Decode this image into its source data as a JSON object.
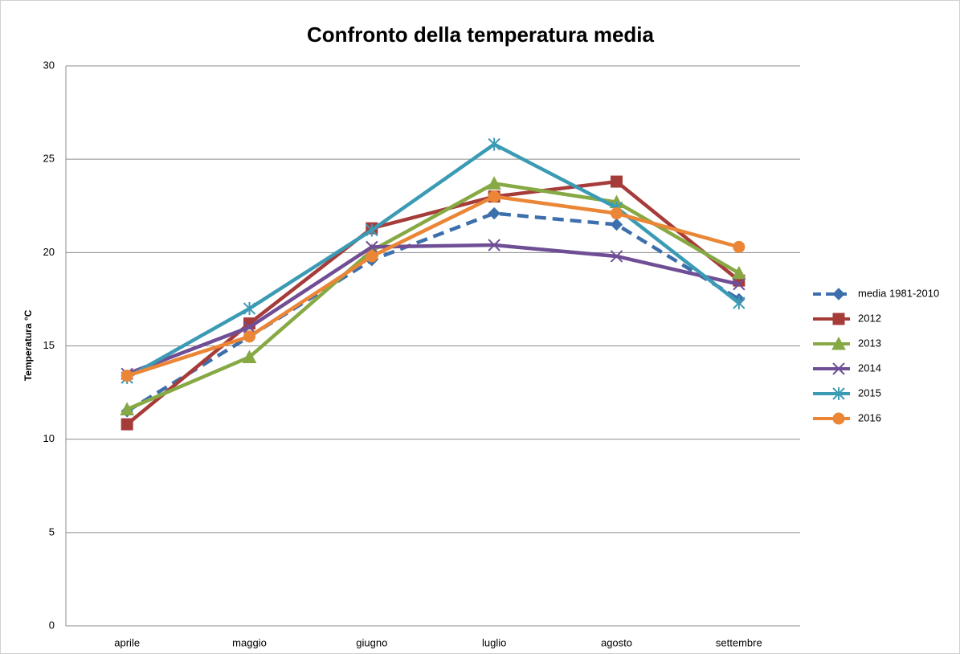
{
  "chart_data": {
    "type": "line",
    "title": "Confronto della temperatura media",
    "y_label": "Temperatura °C",
    "categories": [
      "aprile",
      "maggio",
      "giugno",
      "luglio",
      "agosto",
      "settembre"
    ],
    "series": [
      {
        "name": "media 1981-2010",
        "color": "#3d6fad",
        "marker": "diamond",
        "dashed": true,
        "values": [
          11.5,
          15.5,
          19.6,
          22.1,
          21.5,
          17.5
        ]
      },
      {
        "name": "2012",
        "color": "#a63c3a",
        "marker": "square",
        "values": [
          10.8,
          16.2,
          21.3,
          23.0,
          23.8,
          18.5
        ]
      },
      {
        "name": "2013",
        "color": "#86a944",
        "marker": "triangle",
        "values": [
          11.6,
          14.4,
          20.1,
          23.7,
          22.7,
          18.9
        ]
      },
      {
        "name": "2014",
        "color": "#6f4e96",
        "marker": "x",
        "values": [
          13.5,
          16.0,
          20.3,
          20.4,
          19.8,
          18.3
        ]
      },
      {
        "name": "2015",
        "color": "#3b9bb5",
        "marker": "star",
        "values": [
          13.3,
          17.0,
          21.2,
          25.8,
          22.4,
          17.3
        ]
      },
      {
        "name": "2016",
        "color": "#ea8636",
        "marker": "circle",
        "values": [
          13.4,
          15.5,
          19.8,
          23.0,
          22.1,
          20.3
        ]
      }
    ],
    "ylim": [
      0,
      30
    ],
    "yticks": [
      0,
      5,
      10,
      15,
      20,
      25,
      30
    ],
    "grid": true,
    "legend": "right"
  }
}
